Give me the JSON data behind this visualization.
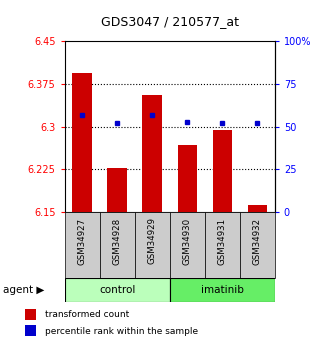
{
  "title": "GDS3047 / 210577_at",
  "categories": [
    "GSM34927",
    "GSM34928",
    "GSM34929",
    "GSM34930",
    "GSM34931",
    "GSM34932"
  ],
  "bar_values": [
    6.395,
    6.228,
    6.355,
    6.268,
    6.295,
    6.162
  ],
  "percentile_values": [
    57,
    52,
    57,
    53,
    52,
    52
  ],
  "ylim_left": [
    6.15,
    6.45
  ],
  "ylim_right": [
    0,
    100
  ],
  "yticks_left": [
    6.15,
    6.225,
    6.3,
    6.375,
    6.45
  ],
  "yticks_right": [
    0,
    25,
    50,
    75,
    100
  ],
  "ytick_labels_left": [
    "6.15",
    "6.225",
    "6.3",
    "6.375",
    "6.45"
  ],
  "ytick_labels_right": [
    "0",
    "25",
    "50",
    "75",
    "100%"
  ],
  "bar_color": "#cc0000",
  "dot_color": "#0000cc",
  "bar_base": 6.15,
  "control_label": "control",
  "imatinib_label": "imatinib",
  "agent_label": "agent",
  "legend_bar_label": "transformed count",
  "legend_dot_label": "percentile rank within the sample",
  "control_color": "#bbffbb",
  "imatinib_color": "#66ee66",
  "group_bg_color": "#cccccc",
  "bar_width": 0.55
}
